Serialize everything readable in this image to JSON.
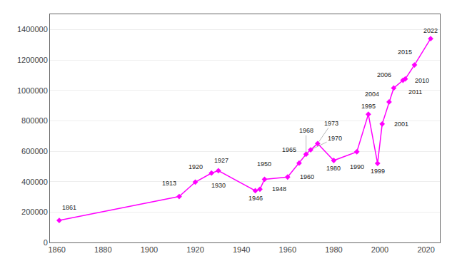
{
  "chart_data": {
    "type": "line",
    "x": [
      1861,
      1913,
      1920,
      1927,
      1930,
      1946,
      1948,
      1950,
      1960,
      1965,
      1968,
      1970,
      1973,
      1980,
      1990,
      1995,
      1999,
      2001,
      2004,
      2006,
      2010,
      2011,
      2015,
      2022
    ],
    "values": [
      145000,
      302000,
      397000,
      456000,
      472000,
      340000,
      350000,
      415000,
      430000,
      522000,
      580000,
      609000,
      650000,
      539000,
      596000,
      843000,
      520000,
      779000,
      924000,
      1015000,
      1066000,
      1075000,
      1167000,
      1340000
    ],
    "color": "#FF00FF",
    "marker": "diamond",
    "xlim": [
      1857,
      2026
    ],
    "xticks": [
      1860,
      1880,
      1900,
      1920,
      1940,
      1960,
      1980,
      2000,
      2020
    ],
    "ylim": [
      0,
      1500000
    ],
    "yticks": [
      0,
      200000,
      400000,
      600000,
      800000,
      1000000,
      1200000,
      1400000
    ],
    "grid": true,
    "annotations": [
      "1861",
      "1913",
      "1920",
      "1927",
      "1930",
      "1946",
      "1948",
      "1950",
      "1960",
      "1965",
      "1968",
      "1970",
      "1973",
      "1980",
      "1990",
      "1995",
      "1999",
      "2001",
      "2004",
      "2006",
      "2010",
      "2011",
      "2015",
      "2022"
    ]
  }
}
